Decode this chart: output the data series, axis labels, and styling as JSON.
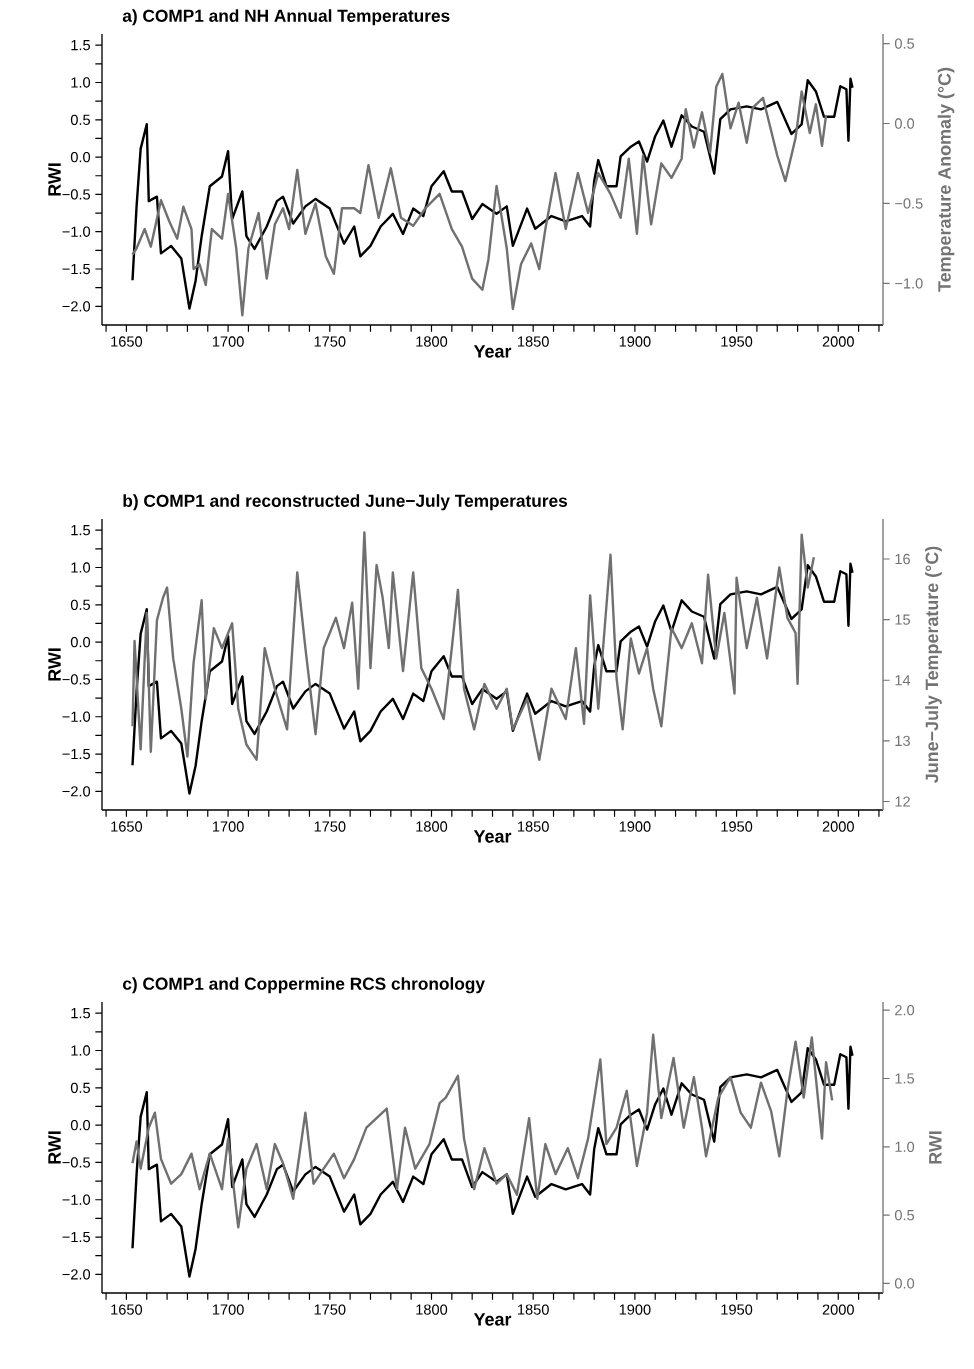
{
  "chart_data": [
    {
      "type": "line",
      "title": "a) COMP1 and NH Annual Temperatures",
      "xlabel": "Year",
      "ylabel": "RWI",
      "y2label": "Temperature Anomaly (°C)",
      "xlim": [
        1638,
        2022
      ],
      "xticks": [
        {
          "value": 1640,
          "label": null
        },
        1650,
        {
          "value": 1660,
          "label": null
        },
        {
          "value": 1670,
          "label": null
        },
        {
          "value": 1680,
          "label": null
        },
        {
          "value": 1690,
          "label": null
        },
        1700,
        {
          "value": 1710,
          "label": null
        },
        {
          "value": 1720,
          "label": null
        },
        {
          "value": 1730,
          "label": null
        },
        {
          "value": 1740,
          "label": null
        },
        1750,
        {
          "value": 1760,
          "label": null
        },
        {
          "value": 1770,
          "label": null
        },
        {
          "value": 1780,
          "label": null
        },
        {
          "value": 1790,
          "label": null
        },
        1800,
        {
          "value": 1810,
          "label": null
        },
        {
          "value": 1820,
          "label": null
        },
        {
          "value": 1830,
          "label": null
        },
        {
          "value": 1840,
          "label": null
        },
        1850,
        {
          "value": 1860,
          "label": null
        },
        {
          "value": 1870,
          "label": null
        },
        {
          "value": 1880,
          "label": null
        },
        {
          "value": 1890,
          "label": null
        },
        1900,
        {
          "value": 1910,
          "label": null
        },
        {
          "value": 1920,
          "label": null
        },
        {
          "value": 1930,
          "label": null
        },
        {
          "value": 1940,
          "label": null
        },
        1950,
        {
          "value": 1960,
          "label": null
        },
        {
          "value": 1970,
          "label": null
        },
        {
          "value": 1980,
          "label": null
        },
        {
          "value": 1990,
          "label": null
        },
        2000,
        {
          "value": 2010,
          "label": null
        },
        {
          "value": 2020,
          "label": null
        }
      ],
      "ylim": [
        -2.25,
        1.65
      ],
      "yticks": [
        {
          "value": -2.0,
          "label": "−2.0"
        },
        {
          "value": -1.75,
          "label": null
        },
        {
          "value": -1.5,
          "label": "−1.5"
        },
        {
          "value": -1.25,
          "label": null
        },
        {
          "value": -1.0,
          "label": "−1.0"
        },
        {
          "value": -0.75,
          "label": null
        },
        {
          "value": -0.5,
          "label": "−0.5"
        },
        {
          "value": -0.25,
          "label": null
        },
        {
          "value": 0,
          "label": "0.0"
        },
        {
          "value": 0.25,
          "label": null
        },
        {
          "value": 0.5,
          "label": "0.5"
        },
        {
          "value": 0.75,
          "label": null
        },
        {
          "value": 1.0,
          "label": "1.0"
        },
        {
          "value": 1.25,
          "label": null
        },
        {
          "value": 1.5,
          "label": "1.5"
        }
      ],
      "y2lim": [
        -1.26,
        0.56
      ],
      "y2ticks": [
        {
          "value": -1.0,
          "label": "−1.0"
        },
        {
          "value": -0.5,
          "label": "−0.5"
        },
        {
          "value": 0,
          "label": "0.0"
        },
        0.5
      ],
      "series": [
        {
          "color": "#000000",
          "x": [
            1653,
            1655,
            1657,
            1660,
            1661,
            1665,
            1667,
            1672,
            1677,
            1681,
            1684,
            1687,
            1691,
            1697,
            1700,
            1702,
            1707,
            1709,
            1713,
            1719,
            1724,
            1727,
            1732,
            1738,
            1743,
            1750,
            1757,
            1762,
            1765,
            1770,
            1775,
            1781,
            1786,
            1791,
            1796,
            1800,
            1806,
            1810,
            1815,
            1820,
            1825,
            1832,
            1837,
            1840,
            1847,
            1851,
            1859,
            1866,
            1874,
            1878,
            1880,
            1882,
            1886,
            1891,
            1893,
            1898,
            1902,
            1906,
            1910,
            1914,
            1918,
            1923,
            1928,
            1934,
            1939,
            1942,
            1947,
            1955,
            1962,
            1970,
            1977,
            1982,
            1985,
            1989,
            1993,
            1998,
            2001,
            2004,
            2005,
            2006,
            2007
          ],
          "values": [
            -1.65,
            -0.66,
            0.11,
            0.44,
            -0.59,
            -0.53,
            -1.29,
            -1.19,
            -1.36,
            -2.03,
            -1.66,
            -1.06,
            -0.39,
            -0.26,
            0.08,
            -0.83,
            -0.46,
            -1.06,
            -1.23,
            -0.93,
            -0.59,
            -0.53,
            -0.89,
            -0.66,
            -0.56,
            -0.69,
            -1.16,
            -0.93,
            -1.33,
            -1.19,
            -0.93,
            -0.76,
            -1.03,
            -0.69,
            -0.79,
            -0.39,
            -0.19,
            -0.46,
            -0.46,
            -0.83,
            -0.63,
            -0.76,
            -0.66,
            -1.19,
            -0.69,
            -0.96,
            -0.79,
            -0.86,
            -0.79,
            -0.93,
            -0.32,
            -0.04,
            -0.39,
            -0.39,
            0.01,
            0.14,
            0.21,
            -0.06,
            0.28,
            0.49,
            0.14,
            0.56,
            0.41,
            0.34,
            -0.22,
            0.51,
            0.64,
            0.68,
            0.64,
            0.74,
            0.31,
            0.44,
            1.03,
            0.88,
            0.54,
            0.54,
            0.95,
            0.91,
            0.22,
            1.05,
            0.93
          ]
        },
        {
          "color": "#707070",
          "axis": "y2",
          "x": [
            1653,
            1655,
            1659,
            1662,
            1667,
            1671,
            1675,
            1678,
            1682,
            1683,
            1686,
            1689,
            1692,
            1697,
            1700,
            1704,
            1707,
            1710,
            1715,
            1719,
            1723,
            1727,
            1730,
            1734,
            1738,
            1743,
            1748,
            1752,
            1756,
            1762,
            1765,
            1769,
            1774,
            1780,
            1785,
            1791,
            1797,
            1804,
            1810,
            1815,
            1820,
            1825,
            1828,
            1832,
            1837,
            1840,
            1844,
            1849,
            1853,
            1856,
            1861,
            1866,
            1872,
            1877,
            1882,
            1888,
            1893,
            1897,
            1901,
            1904,
            1908,
            1913,
            1918,
            1923,
            1925,
            1929,
            1933,
            1937,
            1940,
            1943,
            1947,
            1951,
            1955,
            1958,
            1963,
            1970,
            1974,
            1979,
            1982,
            1986,
            1989,
            1992,
            1994
          ],
          "values": [
            -0.82,
            -0.78,
            -0.66,
            -0.77,
            -0.48,
            -0.61,
            -0.72,
            -0.52,
            -0.66,
            -0.91,
            -0.88,
            -1.01,
            -0.66,
            -0.72,
            -0.44,
            -0.78,
            -1.2,
            -0.78,
            -0.56,
            -0.97,
            -0.63,
            -0.53,
            -0.66,
            -0.29,
            -0.69,
            -0.5,
            -0.83,
            -0.94,
            -0.53,
            -0.53,
            -0.56,
            -0.26,
            -0.59,
            -0.28,
            -0.59,
            -0.64,
            -0.53,
            -0.44,
            -0.66,
            -0.77,
            -0.97,
            -1.04,
            -0.85,
            -0.39,
            -0.78,
            -1.16,
            -0.88,
            -0.75,
            -0.91,
            -0.66,
            -0.31,
            -0.66,
            -0.31,
            -0.56,
            -0.31,
            -0.44,
            -0.59,
            -0.22,
            -0.69,
            -0.2,
            -0.63,
            -0.25,
            -0.34,
            -0.22,
            0.09,
            -0.15,
            0.07,
            -0.18,
            0.23,
            0.31,
            -0.03,
            0.13,
            -0.12,
            0.1,
            0.16,
            -0.2,
            -0.36,
            -0.09,
            0.2,
            -0.06,
            0.12,
            -0.14,
            0.05
          ]
        }
      ]
    },
    {
      "type": "line",
      "title": "b) COMP1 and reconstructed June−July Temperatures",
      "xlabel": "Year",
      "ylabel": "RWI",
      "y2label": "June−July Temperature (°C)",
      "xlim": [
        1638,
        2022
      ],
      "xticks": [
        {
          "value": 1640,
          "label": null
        },
        1650,
        {
          "value": 1660,
          "label": null
        },
        {
          "value": 1670,
          "label": null
        },
        {
          "value": 1680,
          "label": null
        },
        {
          "value": 1690,
          "label": null
        },
        1700,
        {
          "value": 1710,
          "label": null
        },
        {
          "value": 1720,
          "label": null
        },
        {
          "value": 1730,
          "label": null
        },
        {
          "value": 1740,
          "label": null
        },
        1750,
        {
          "value": 1760,
          "label": null
        },
        {
          "value": 1770,
          "label": null
        },
        {
          "value": 1780,
          "label": null
        },
        {
          "value": 1790,
          "label": null
        },
        1800,
        {
          "value": 1810,
          "label": null
        },
        {
          "value": 1820,
          "label": null
        },
        {
          "value": 1830,
          "label": null
        },
        {
          "value": 1840,
          "label": null
        },
        1850,
        {
          "value": 1860,
          "label": null
        },
        {
          "value": 1870,
          "label": null
        },
        {
          "value": 1880,
          "label": null
        },
        {
          "value": 1890,
          "label": null
        },
        1900,
        {
          "value": 1910,
          "label": null
        },
        {
          "value": 1920,
          "label": null
        },
        {
          "value": 1930,
          "label": null
        },
        {
          "value": 1940,
          "label": null
        },
        1950,
        {
          "value": 1960,
          "label": null
        },
        {
          "value": 1970,
          "label": null
        },
        {
          "value": 1980,
          "label": null
        },
        {
          "value": 1990,
          "label": null
        },
        2000,
        {
          "value": 2010,
          "label": null
        },
        {
          "value": 2020,
          "label": null
        }
      ],
      "ylim": [
        -2.25,
        1.65
      ],
      "yticks": [
        {
          "value": -2.0,
          "label": "−2.0"
        },
        {
          "value": -1.75,
          "label": null
        },
        {
          "value": -1.5,
          "label": "−1.5"
        },
        {
          "value": -1.25,
          "label": null
        },
        {
          "value": -1.0,
          "label": "−1.0"
        },
        {
          "value": -0.75,
          "label": null
        },
        {
          "value": -0.5,
          "label": "−0.5"
        },
        {
          "value": -0.25,
          "label": null
        },
        {
          "value": 0,
          "label": "0.0"
        },
        {
          "value": 0.25,
          "label": null
        },
        {
          "value": 0.5,
          "label": "0.5"
        },
        {
          "value": 0.75,
          "label": null
        },
        {
          "value": 1.0,
          "label": "1.0"
        },
        {
          "value": 1.25,
          "label": null
        },
        {
          "value": 1.5,
          "label": "1.5"
        }
      ],
      "y2lim": [
        11.86,
        16.66
      ],
      "y2ticks": [
        12,
        13,
        14,
        15,
        16
      ],
      "series": [
        {
          "color": "#000000",
          "x": [
            1653,
            1655,
            1657,
            1660,
            1661,
            1665,
            1667,
            1672,
            1677,
            1681,
            1684,
            1687,
            1691,
            1697,
            1700,
            1702,
            1707,
            1709,
            1713,
            1719,
            1724,
            1727,
            1732,
            1738,
            1743,
            1750,
            1757,
            1762,
            1765,
            1770,
            1775,
            1781,
            1786,
            1791,
            1796,
            1800,
            1806,
            1810,
            1815,
            1820,
            1825,
            1832,
            1837,
            1840,
            1847,
            1851,
            1859,
            1866,
            1874,
            1878,
            1880,
            1882,
            1886,
            1891,
            1893,
            1898,
            1902,
            1906,
            1910,
            1914,
            1918,
            1923,
            1928,
            1934,
            1939,
            1942,
            1947,
            1955,
            1962,
            1970,
            1977,
            1982,
            1985,
            1989,
            1993,
            1998,
            2001,
            2004,
            2005,
            2006,
            2007
          ],
          "values": [
            -1.65,
            -0.66,
            0.11,
            0.44,
            -0.59,
            -0.53,
            -1.29,
            -1.19,
            -1.36,
            -2.03,
            -1.66,
            -1.06,
            -0.39,
            -0.26,
            0.08,
            -0.83,
            -0.46,
            -1.06,
            -1.23,
            -0.93,
            -0.59,
            -0.53,
            -0.89,
            -0.66,
            -0.56,
            -0.69,
            -1.16,
            -0.93,
            -1.33,
            -1.19,
            -0.93,
            -0.76,
            -1.03,
            -0.69,
            -0.79,
            -0.39,
            -0.19,
            -0.46,
            -0.46,
            -0.83,
            -0.63,
            -0.76,
            -0.66,
            -1.19,
            -0.69,
            -0.96,
            -0.79,
            -0.86,
            -0.79,
            -0.93,
            -0.32,
            -0.04,
            -0.39,
            -0.39,
            0.01,
            0.14,
            0.21,
            -0.06,
            0.28,
            0.49,
            0.14,
            0.56,
            0.41,
            0.34,
            -0.22,
            0.51,
            0.64,
            0.68,
            0.64,
            0.74,
            0.31,
            0.44,
            1.03,
            0.88,
            0.54,
            0.54,
            0.95,
            0.91,
            0.22,
            1.05,
            0.93
          ]
        },
        {
          "color": "#707070",
          "axis": "y2",
          "x": [
            1653,
            1654,
            1657,
            1660,
            1662,
            1665,
            1668,
            1670,
            1673,
            1677,
            1680,
            1683,
            1687,
            1689,
            1693,
            1697,
            1702,
            1705,
            1709,
            1714,
            1718,
            1723,
            1729,
            1734,
            1738,
            1743,
            1747,
            1753,
            1757,
            1761,
            1764,
            1767,
            1770,
            1773,
            1776,
            1779,
            1781,
            1786,
            1791,
            1795,
            1800,
            1806,
            1810,
            1813,
            1816,
            1821,
            1826,
            1832,
            1837,
            1840,
            1847,
            1853,
            1859,
            1866,
            1871,
            1875,
            1878,
            1882,
            1888,
            1891,
            1894,
            1898,
            1902,
            1906,
            1909,
            1913,
            1918,
            1923,
            1928,
            1933,
            1936,
            1940,
            1944,
            1949,
            1950,
            1955,
            1960,
            1965,
            1971,
            1975,
            1979,
            1980,
            1982,
            1985,
            1988
          ],
          "values": [
            13.24,
            14.65,
            12.86,
            15.11,
            12.82,
            14.99,
            15.36,
            15.53,
            14.36,
            13.53,
            12.74,
            14.28,
            15.32,
            13.69,
            14.86,
            14.53,
            14.94,
            13.53,
            12.94,
            12.69,
            14.53,
            13.86,
            13.19,
            15.78,
            14.53,
            13.11,
            14.53,
            15.03,
            14.53,
            15.28,
            13.86,
            16.44,
            14.2,
            15.9,
            15.36,
            14.53,
            15.78,
            14.15,
            15.78,
            14.2,
            13.86,
            13.36,
            14.53,
            15.49,
            13.86,
            13.19,
            13.94,
            13.53,
            13.86,
            13.19,
            13.69,
            12.69,
            13.86,
            13.36,
            14.53,
            13.28,
            15.4,
            13.53,
            16.07,
            14.03,
            13.19,
            14.69,
            14.11,
            14.53,
            13.86,
            13.24,
            14.86,
            14.53,
            14.94,
            14.28,
            15.74,
            14.36,
            15.11,
            13.78,
            15.69,
            14.53,
            15.36,
            14.36,
            15.86,
            15.03,
            14.78,
            13.94,
            16.4,
            15.53,
            16.03
          ]
        }
      ]
    },
    {
      "type": "line",
      "title": "c) COMP1 and Coppermine RCS chronology",
      "xlabel": "Year",
      "ylabel": "RWI",
      "y2label": "RWI",
      "xlim": [
        1638,
        2022
      ],
      "xticks": [
        {
          "value": 1640,
          "label": null
        },
        1650,
        {
          "value": 1660,
          "label": null
        },
        {
          "value": 1670,
          "label": null
        },
        {
          "value": 1680,
          "label": null
        },
        {
          "value": 1690,
          "label": null
        },
        1700,
        {
          "value": 1710,
          "label": null
        },
        {
          "value": 1720,
          "label": null
        },
        {
          "value": 1730,
          "label": null
        },
        {
          "value": 1740,
          "label": null
        },
        1750,
        {
          "value": 1760,
          "label": null
        },
        {
          "value": 1770,
          "label": null
        },
        {
          "value": 1780,
          "label": null
        },
        {
          "value": 1790,
          "label": null
        },
        1800,
        {
          "value": 1810,
          "label": null
        },
        {
          "value": 1820,
          "label": null
        },
        {
          "value": 1830,
          "label": null
        },
        {
          "value": 1840,
          "label": null
        },
        1850,
        {
          "value": 1860,
          "label": null
        },
        {
          "value": 1870,
          "label": null
        },
        {
          "value": 1880,
          "label": null
        },
        {
          "value": 1890,
          "label": null
        },
        1900,
        {
          "value": 1910,
          "label": null
        },
        {
          "value": 1920,
          "label": null
        },
        {
          "value": 1930,
          "label": null
        },
        {
          "value": 1940,
          "label": null
        },
        1950,
        {
          "value": 1960,
          "label": null
        },
        {
          "value": 1970,
          "label": null
        },
        {
          "value": 1980,
          "label": null
        },
        {
          "value": 1990,
          "label": null
        },
        2000,
        {
          "value": 2010,
          "label": null
        },
        {
          "value": 2020,
          "label": null
        }
      ],
      "ylim": [
        -2.25,
        1.65
      ],
      "yticks": [
        {
          "value": -2.0,
          "label": "−2.0"
        },
        {
          "value": -1.75,
          "label": null
        },
        {
          "value": -1.5,
          "label": "−1.5"
        },
        {
          "value": -1.25,
          "label": null
        },
        {
          "value": -1.0,
          "label": "−1.0"
        },
        {
          "value": -0.75,
          "label": null
        },
        {
          "value": -0.5,
          "label": "−0.5"
        },
        {
          "value": -0.25,
          "label": null
        },
        {
          "value": 0,
          "label": "0.0"
        },
        {
          "value": 0.25,
          "label": null
        },
        {
          "value": 0.5,
          "label": "0.5"
        },
        {
          "value": 0.75,
          "label": null
        },
        {
          "value": 1.0,
          "label": "1.0"
        },
        {
          "value": 1.25,
          "label": null
        },
        {
          "value": 1.5,
          "label": "1.5"
        }
      ],
      "y2lim": [
        -0.07,
        2.06
      ],
      "y2ticks": [
        {
          "value": 0,
          "label": "0.0"
        },
        0.5,
        {
          "value": 1,
          "label": "1.0"
        },
        1.5,
        {
          "value": 2,
          "label": "2.0"
        }
      ],
      "series": [
        {
          "color": "#000000",
          "x": [
            1653,
            1655,
            1657,
            1660,
            1661,
            1665,
            1667,
            1672,
            1677,
            1681,
            1684,
            1687,
            1691,
            1697,
            1700,
            1702,
            1707,
            1709,
            1713,
            1719,
            1724,
            1727,
            1732,
            1738,
            1743,
            1750,
            1757,
            1762,
            1765,
            1770,
            1775,
            1781,
            1786,
            1791,
            1796,
            1800,
            1806,
            1810,
            1815,
            1820,
            1825,
            1832,
            1837,
            1840,
            1847,
            1851,
            1859,
            1866,
            1874,
            1878,
            1880,
            1882,
            1886,
            1891,
            1893,
            1898,
            1902,
            1906,
            1910,
            1914,
            1918,
            1923,
            1928,
            1934,
            1939,
            1942,
            1947,
            1955,
            1962,
            1970,
            1977,
            1982,
            1985,
            1989,
            1993,
            1998,
            2001,
            2004,
            2005,
            2006,
            2007
          ],
          "values": [
            -1.65,
            -0.66,
            0.11,
            0.44,
            -0.59,
            -0.53,
            -1.29,
            -1.19,
            -1.36,
            -2.03,
            -1.66,
            -1.06,
            -0.39,
            -0.26,
            0.08,
            -0.83,
            -0.46,
            -1.06,
            -1.23,
            -0.93,
            -0.59,
            -0.53,
            -0.89,
            -0.66,
            -0.56,
            -0.69,
            -1.16,
            -0.93,
            -1.33,
            -1.19,
            -0.93,
            -0.76,
            -1.03,
            -0.69,
            -0.79,
            -0.39,
            -0.19,
            -0.46,
            -0.46,
            -0.83,
            -0.63,
            -0.76,
            -0.66,
            -1.19,
            -0.69,
            -0.96,
            -0.79,
            -0.86,
            -0.79,
            -0.93,
            -0.32,
            -0.04,
            -0.39,
            -0.39,
            0.01,
            0.14,
            0.21,
            -0.06,
            0.28,
            0.49,
            0.14,
            0.56,
            0.41,
            0.34,
            -0.22,
            0.51,
            0.64,
            0.68,
            0.64,
            0.74,
            0.31,
            0.44,
            1.03,
            0.88,
            0.54,
            0.54,
            0.95,
            0.91,
            0.22,
            1.05,
            0.93
          ]
        },
        {
          "color": "#707070",
          "axis": "y2",
          "x": [
            1653,
            1655,
            1657,
            1661,
            1664,
            1667,
            1672,
            1677,
            1682,
            1686,
            1691,
            1697,
            1700,
            1705,
            1709,
            1714,
            1719,
            1723,
            1727,
            1732,
            1738,
            1742,
            1747,
            1752,
            1757,
            1762,
            1768,
            1773,
            1778,
            1783,
            1787,
            1792,
            1799,
            1804,
            1807,
            1813,
            1816,
            1821,
            1826,
            1832,
            1837,
            1842,
            1848,
            1852,
            1856,
            1861,
            1867,
            1872,
            1877,
            1883,
            1886,
            1891,
            1896,
            1901,
            1906,
            1909,
            1913,
            1919,
            1924,
            1929,
            1933,
            1935,
            1941,
            1947,
            1952,
            1957,
            1962,
            1967,
            1971,
            1975,
            1979,
            1983,
            1987,
            1992,
            1994,
            1997
          ],
          "values": [
            0.88,
            1.04,
            0.84,
            1.14,
            1.25,
            0.91,
            0.73,
            0.8,
            0.95,
            0.69,
            0.95,
            0.69,
            1.06,
            0.41,
            0.84,
            1.02,
            0.69,
            1.02,
            0.88,
            0.62,
            1.25,
            0.73,
            0.84,
            0.95,
            0.77,
            0.91,
            1.14,
            1.21,
            1.28,
            0.69,
            1.14,
            0.84,
            1.02,
            1.32,
            1.36,
            1.52,
            1.06,
            0.69,
            0.99,
            0.73,
            0.8,
            0.65,
            1.21,
            0.62,
            1.02,
            0.8,
            0.99,
            0.77,
            1.06,
            1.64,
            1.02,
            1.14,
            1.41,
            0.86,
            1.25,
            1.82,
            1.21,
            1.65,
            1.14,
            1.51,
            1.14,
            0.93,
            1.36,
            1.51,
            1.25,
            1.14,
            1.47,
            1.26,
            0.93,
            1.41,
            1.77,
            1.36,
            1.8,
            1.06,
            1.62,
            1.34
          ]
        }
      ]
    }
  ]
}
